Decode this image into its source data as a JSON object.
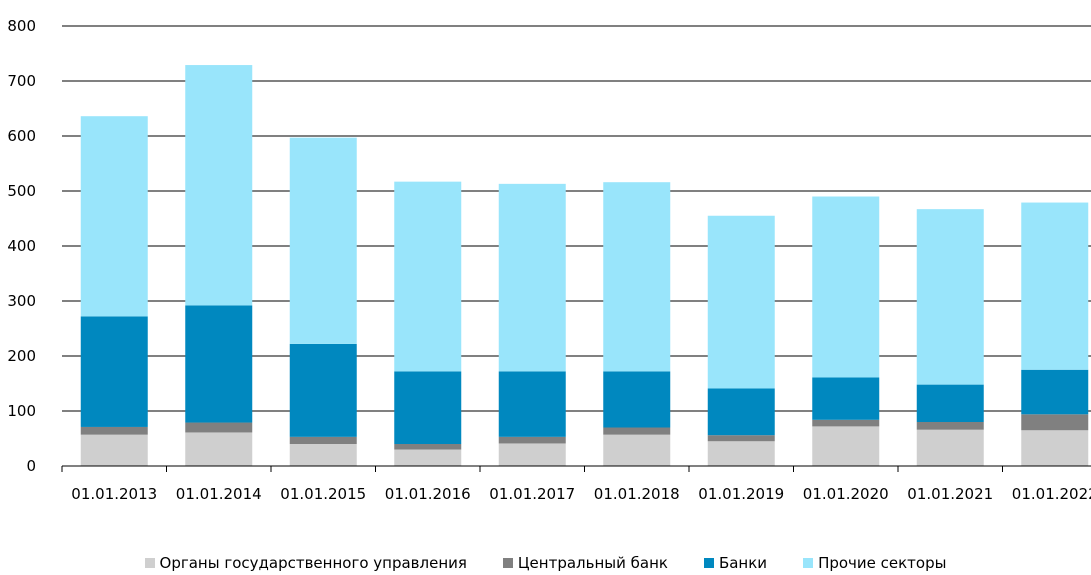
{
  "chart_data": {
    "type": "bar",
    "stacked": true,
    "categories": [
      "01.01.2013",
      "01.01.2014",
      "01.01.2015",
      "01.01.2016",
      "01.01.2017",
      "01.01.2018",
      "01.01.2019",
      "01.01.2020",
      "01.01.2021",
      "01.01.2022"
    ],
    "series": [
      {
        "name": "Органы государственного управления",
        "color": "#cfcfcf",
        "values": [
          57,
          61,
          40,
          30,
          41,
          57,
          45,
          72,
          66,
          65
        ]
      },
      {
        "name": "Центральный банк",
        "color": "#808080",
        "values": [
          14,
          18,
          13,
          10,
          12,
          13,
          11,
          12,
          14,
          29
        ]
      },
      {
        "name": "Банки",
        "color": "#0088bf",
        "values": [
          201,
          213,
          169,
          132,
          119,
          102,
          85,
          77,
          68,
          81
        ]
      },
      {
        "name": "Прочие секторы",
        "color": "#99e5fb",
        "values": [
          364,
          437,
          375,
          345,
          341,
          344,
          314,
          329,
          319,
          304
        ]
      }
    ],
    "yticks": [
      "0",
      "100",
      "200",
      "300",
      "400",
      "500",
      "600",
      "700",
      "800"
    ],
    "ylim": [
      0,
      800
    ],
    "grid": true,
    "legend_position": "bottom"
  }
}
